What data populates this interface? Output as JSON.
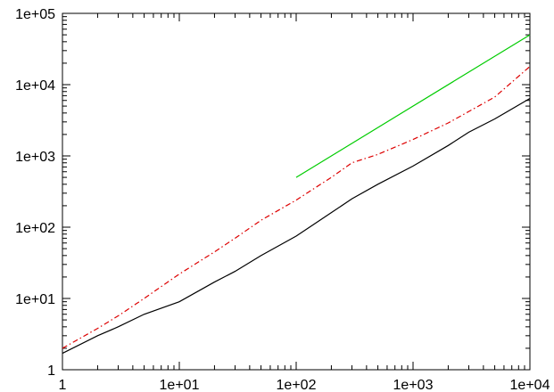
{
  "chart_data": {
    "type": "line",
    "title": "",
    "xlabel": "",
    "ylabel": "",
    "x_scale": "log",
    "y_scale": "log",
    "xlim": [
      1,
      10000
    ],
    "ylim": [
      1,
      100000
    ],
    "grid": false,
    "legend": "none",
    "x_ticks": [
      {
        "value": 1,
        "label": "1"
      },
      {
        "value": 10,
        "label": "1e+01"
      },
      {
        "value": 100,
        "label": "1e+02"
      },
      {
        "value": 1000,
        "label": "1e+03"
      },
      {
        "value": 10000,
        "label": "1e+04"
      }
    ],
    "y_ticks": [
      {
        "value": 1,
        "label": "1"
      },
      {
        "value": 10,
        "label": "1e+01"
      },
      {
        "value": 100,
        "label": "1e+02"
      },
      {
        "value": 1000,
        "label": "1e+03"
      },
      {
        "value": 10000,
        "label": "1e+04"
      },
      {
        "value": 100000,
        "label": "1e+05"
      }
    ],
    "series": [
      {
        "color": "#00cc00",
        "style": "solid",
        "x": [
          100,
          10000
        ],
        "y": [
          500,
          50000
        ]
      },
      {
        "color": "#dd0000",
        "style": "dashdot",
        "x": [
          1,
          2,
          3,
          5,
          10,
          20,
          30,
          50,
          100,
          200,
          300,
          500,
          1000,
          2000,
          3000,
          5000,
          10000
        ],
        "y": [
          2,
          3.8,
          5.7,
          10,
          22,
          45,
          70,
          125,
          240,
          500,
          800,
          1050,
          1700,
          2900,
          4200,
          6700,
          18000
        ]
      },
      {
        "color": "#000000",
        "style": "solid",
        "x": [
          1,
          2,
          3,
          5,
          10,
          20,
          30,
          50,
          100,
          200,
          300,
          500,
          1000,
          2000,
          3000,
          5000,
          10000
        ],
        "y": [
          1.7,
          3,
          4,
          6,
          9,
          17,
          24,
          40,
          75,
          160,
          250,
          400,
          720,
          1400,
          2150,
          3300,
          6400
        ]
      }
    ]
  }
}
